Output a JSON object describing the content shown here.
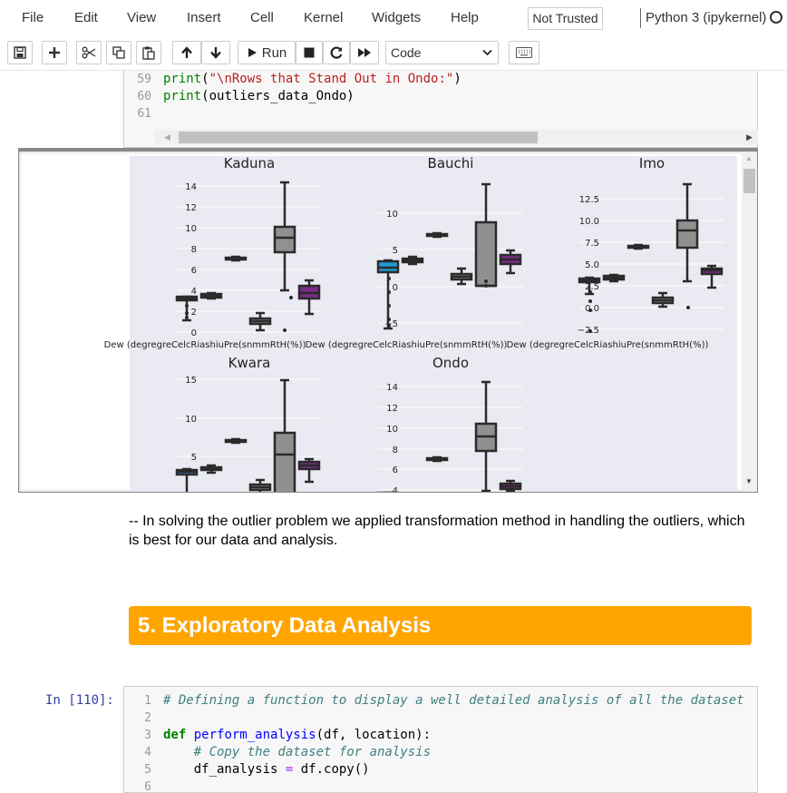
{
  "menubar": {
    "items": [
      "File",
      "Edit",
      "View",
      "Insert",
      "Cell",
      "Kernel",
      "Widgets",
      "Help"
    ],
    "trust_status": "Not Trusted",
    "kernel_name": "Python 3 (ipykernel)"
  },
  "toolbar": {
    "run_label": "Run",
    "cell_type": "Code",
    "icons": [
      "save-icon",
      "plus-icon",
      "cut-icon",
      "copy-icon",
      "paste-icon",
      "arrow-up-icon",
      "arrow-down-icon",
      "run-icon",
      "stop-icon",
      "restart-icon",
      "fast-forward-icon",
      "keyboard-icon"
    ]
  },
  "top_cell": {
    "lines": [
      {
        "num": "59",
        "fn": "print",
        "open": "(",
        "str": "\"\\nRows that Stand Out in Ondo:\"",
        "close": ")"
      },
      {
        "num": "60",
        "fn": "print",
        "rest": "(outliers_data_Ondo)"
      },
      {
        "num": "61"
      }
    ]
  },
  "plots": {
    "colors": {
      "blue": "#1f9bd1",
      "orange": "#e0912c",
      "gray": "#909090",
      "purple": "#7a2b86",
      "whisker": "#2b2b2b",
      "background": "#eaeaf2"
    },
    "xlabel_overlap": "Dew (degregreCelcRiashiuPre(snmmRtH(%))",
    "panels": [
      {
        "title": "Kaduna",
        "yticks": [
          "0",
          "2",
          "4",
          "6",
          "8",
          "10",
          "12",
          "14"
        ]
      },
      {
        "title": "Bauchi",
        "yticks": [
          "−5",
          "0",
          "5",
          "10"
        ]
      },
      {
        "title": "Imo",
        "yticks": [
          "−2.5",
          "0.0",
          "2.5",
          "5.0",
          "7.5",
          "10.0",
          "12.5"
        ]
      },
      {
        "title": "Kwara",
        "yticks": [
          "5",
          "10",
          "15"
        ]
      },
      {
        "title": "Ondo",
        "yticks": [
          "4",
          "6",
          "8",
          "10",
          "12",
          "14"
        ]
      }
    ]
  },
  "markdown": {
    "text": "-- In solving the outlier problem we applied transformation method in handling the outliers, which is best for our data and analysis.",
    "section_title": "5. Exploratory Data Analysis"
  },
  "bottom_cell": {
    "prompt": "In [110]:",
    "lines": [
      {
        "num": "1",
        "comment": "# Defining a function to display a well detailed analysis of all the dataset"
      },
      {
        "num": "2"
      },
      {
        "num": "3",
        "kw": "def",
        "fn": "perform_analysis",
        "rest": "(df, location):"
      },
      {
        "num": "4",
        "comment": "    # Copy the dataset for analysis"
      },
      {
        "num": "5",
        "a": "    df_analysis",
        "op": " = ",
        "b": "df.copy()"
      },
      {
        "num": "6"
      }
    ]
  }
}
